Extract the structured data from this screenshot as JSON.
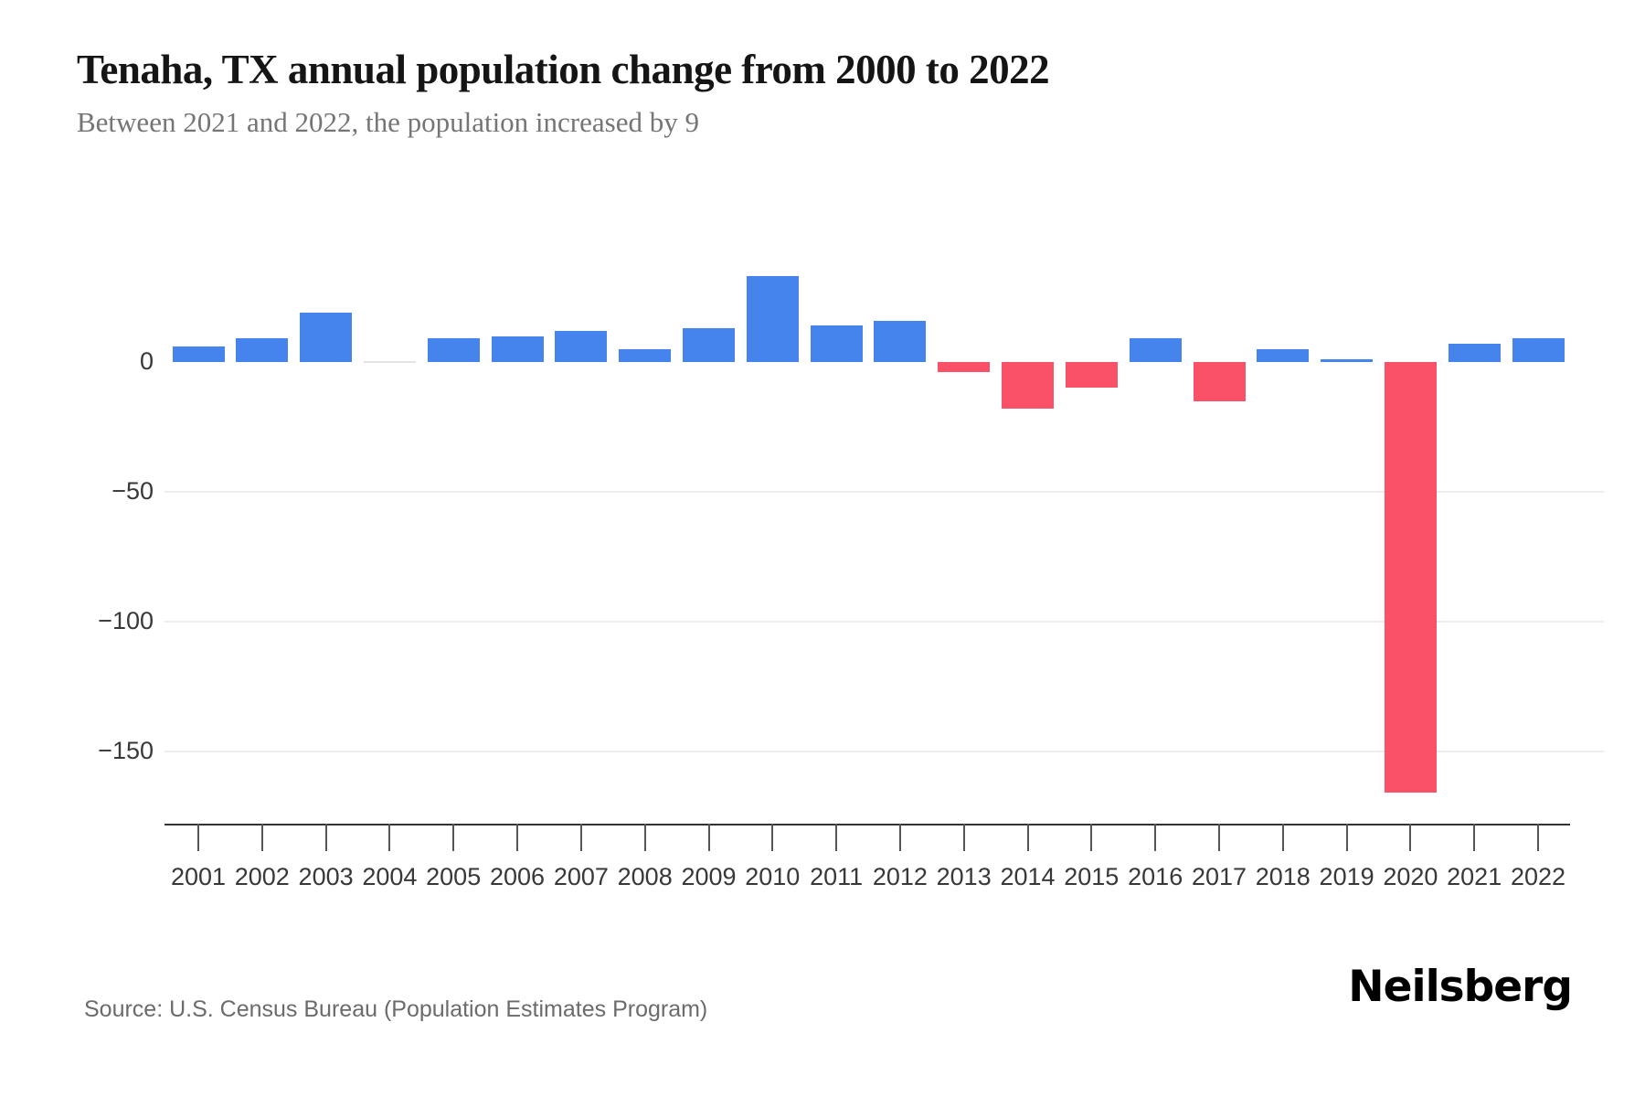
{
  "chart_data": {
    "type": "bar",
    "title": "Tenaha, TX annual population change from 2000 to 2022",
    "subtitle": "Between 2021 and 2022, the population increased by 9",
    "categories": [
      "2001",
      "2002",
      "2003",
      "2004",
      "2005",
      "2006",
      "2007",
      "2008",
      "2009",
      "2010",
      "2011",
      "2012",
      "2013",
      "2014",
      "2015",
      "2016",
      "2017",
      "2018",
      "2019",
      "2020",
      "2021",
      "2022"
    ],
    "values": [
      6,
      9,
      19,
      0,
      9,
      10,
      12,
      5,
      13,
      33,
      14,
      16,
      -4,
      -18,
      -10,
      9,
      -15,
      5,
      1,
      -166,
      7,
      9
    ],
    "xlabel": "",
    "ylabel": "",
    "y_axis": {
      "range": [
        -175,
        40
      ],
      "ticks": [
        {
          "value": 0,
          "label": "0"
        },
        {
          "value": -50,
          "label": "−50"
        },
        {
          "value": -100,
          "label": "−100"
        },
        {
          "value": -150,
          "label": "−150"
        }
      ],
      "gridlines": "horizontal at -50, -100, -150"
    },
    "legend": "none",
    "bar_color_rule": "positive change = blue, negative change = pink/red, zero change = light gray hairline"
  },
  "colors": {
    "positive_bar": "#4584EC",
    "negative_bar": "#FB5168",
    "zero_bar": "#E3E3E3",
    "gridline": "#EDEDED",
    "axis": "#333333"
  },
  "footer": {
    "source": "Source: U.S. Census Bureau (Population Estimates Program)",
    "brand": "Neilsberg"
  }
}
